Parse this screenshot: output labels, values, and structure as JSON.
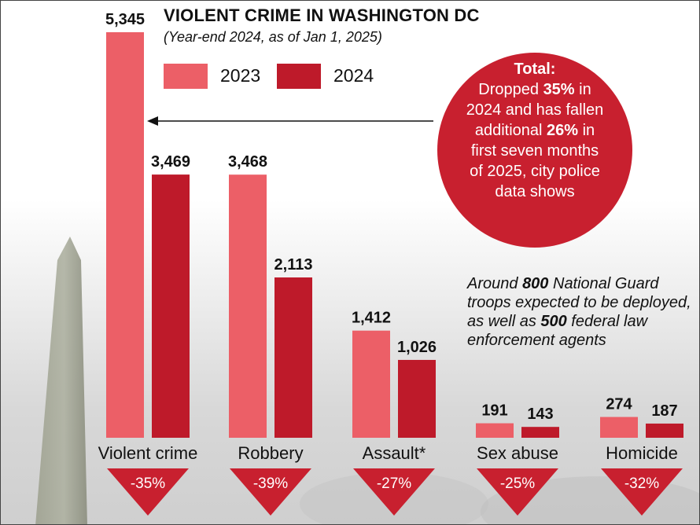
{
  "chart_data": {
    "type": "bar",
    "title": "VIOLENT CRIME IN WASHINGTON DC",
    "subtitle": "(Year-end 2024, as of Jan 1, 2025)",
    "categories": [
      "Violent crime",
      "Robbery",
      "Assault*",
      "Sex abuse",
      "Homicide"
    ],
    "series": [
      {
        "name": "2023",
        "values": [
          5345,
          3468,
          1412,
          191,
          274
        ],
        "labels": [
          "5,345",
          "3,468",
          "1,412",
          "191",
          "274"
        ]
      },
      {
        "name": "2024",
        "values": [
          3469,
          2113,
          1026,
          143,
          187
        ],
        "labels": [
          "3,469",
          "2,113",
          "1,026",
          "143",
          "187"
        ]
      }
    ],
    "changes": [
      "-35%",
      "-39%",
      "-27%",
      "-25%",
      "-32%"
    ],
    "ylim": [
      0,
      5345
    ],
    "grid": false,
    "legend_position": "top-left"
  },
  "colors": {
    "y2023": "#ec5f67",
    "y2024": "#be1a2a",
    "accent": "#c8202f",
    "text": "#111111"
  },
  "callout": {
    "heading": "Total:",
    "line1_pre": "Dropped ",
    "line1_bold": "35%",
    "line1_post": " in",
    "line2": "2024 and has fallen",
    "line3_pre": "additional ",
    "line3_bold": "26%",
    "line3_post": " in",
    "line4": "first seven months",
    "line5": "of 2025, city police",
    "line6": "data shows"
  },
  "note": {
    "p1": "Around ",
    "b1": "800",
    "p2": " National Guard troops expected to be deployed, as well as ",
    "b2": "500",
    "p3": " federal law enforcement agents"
  }
}
